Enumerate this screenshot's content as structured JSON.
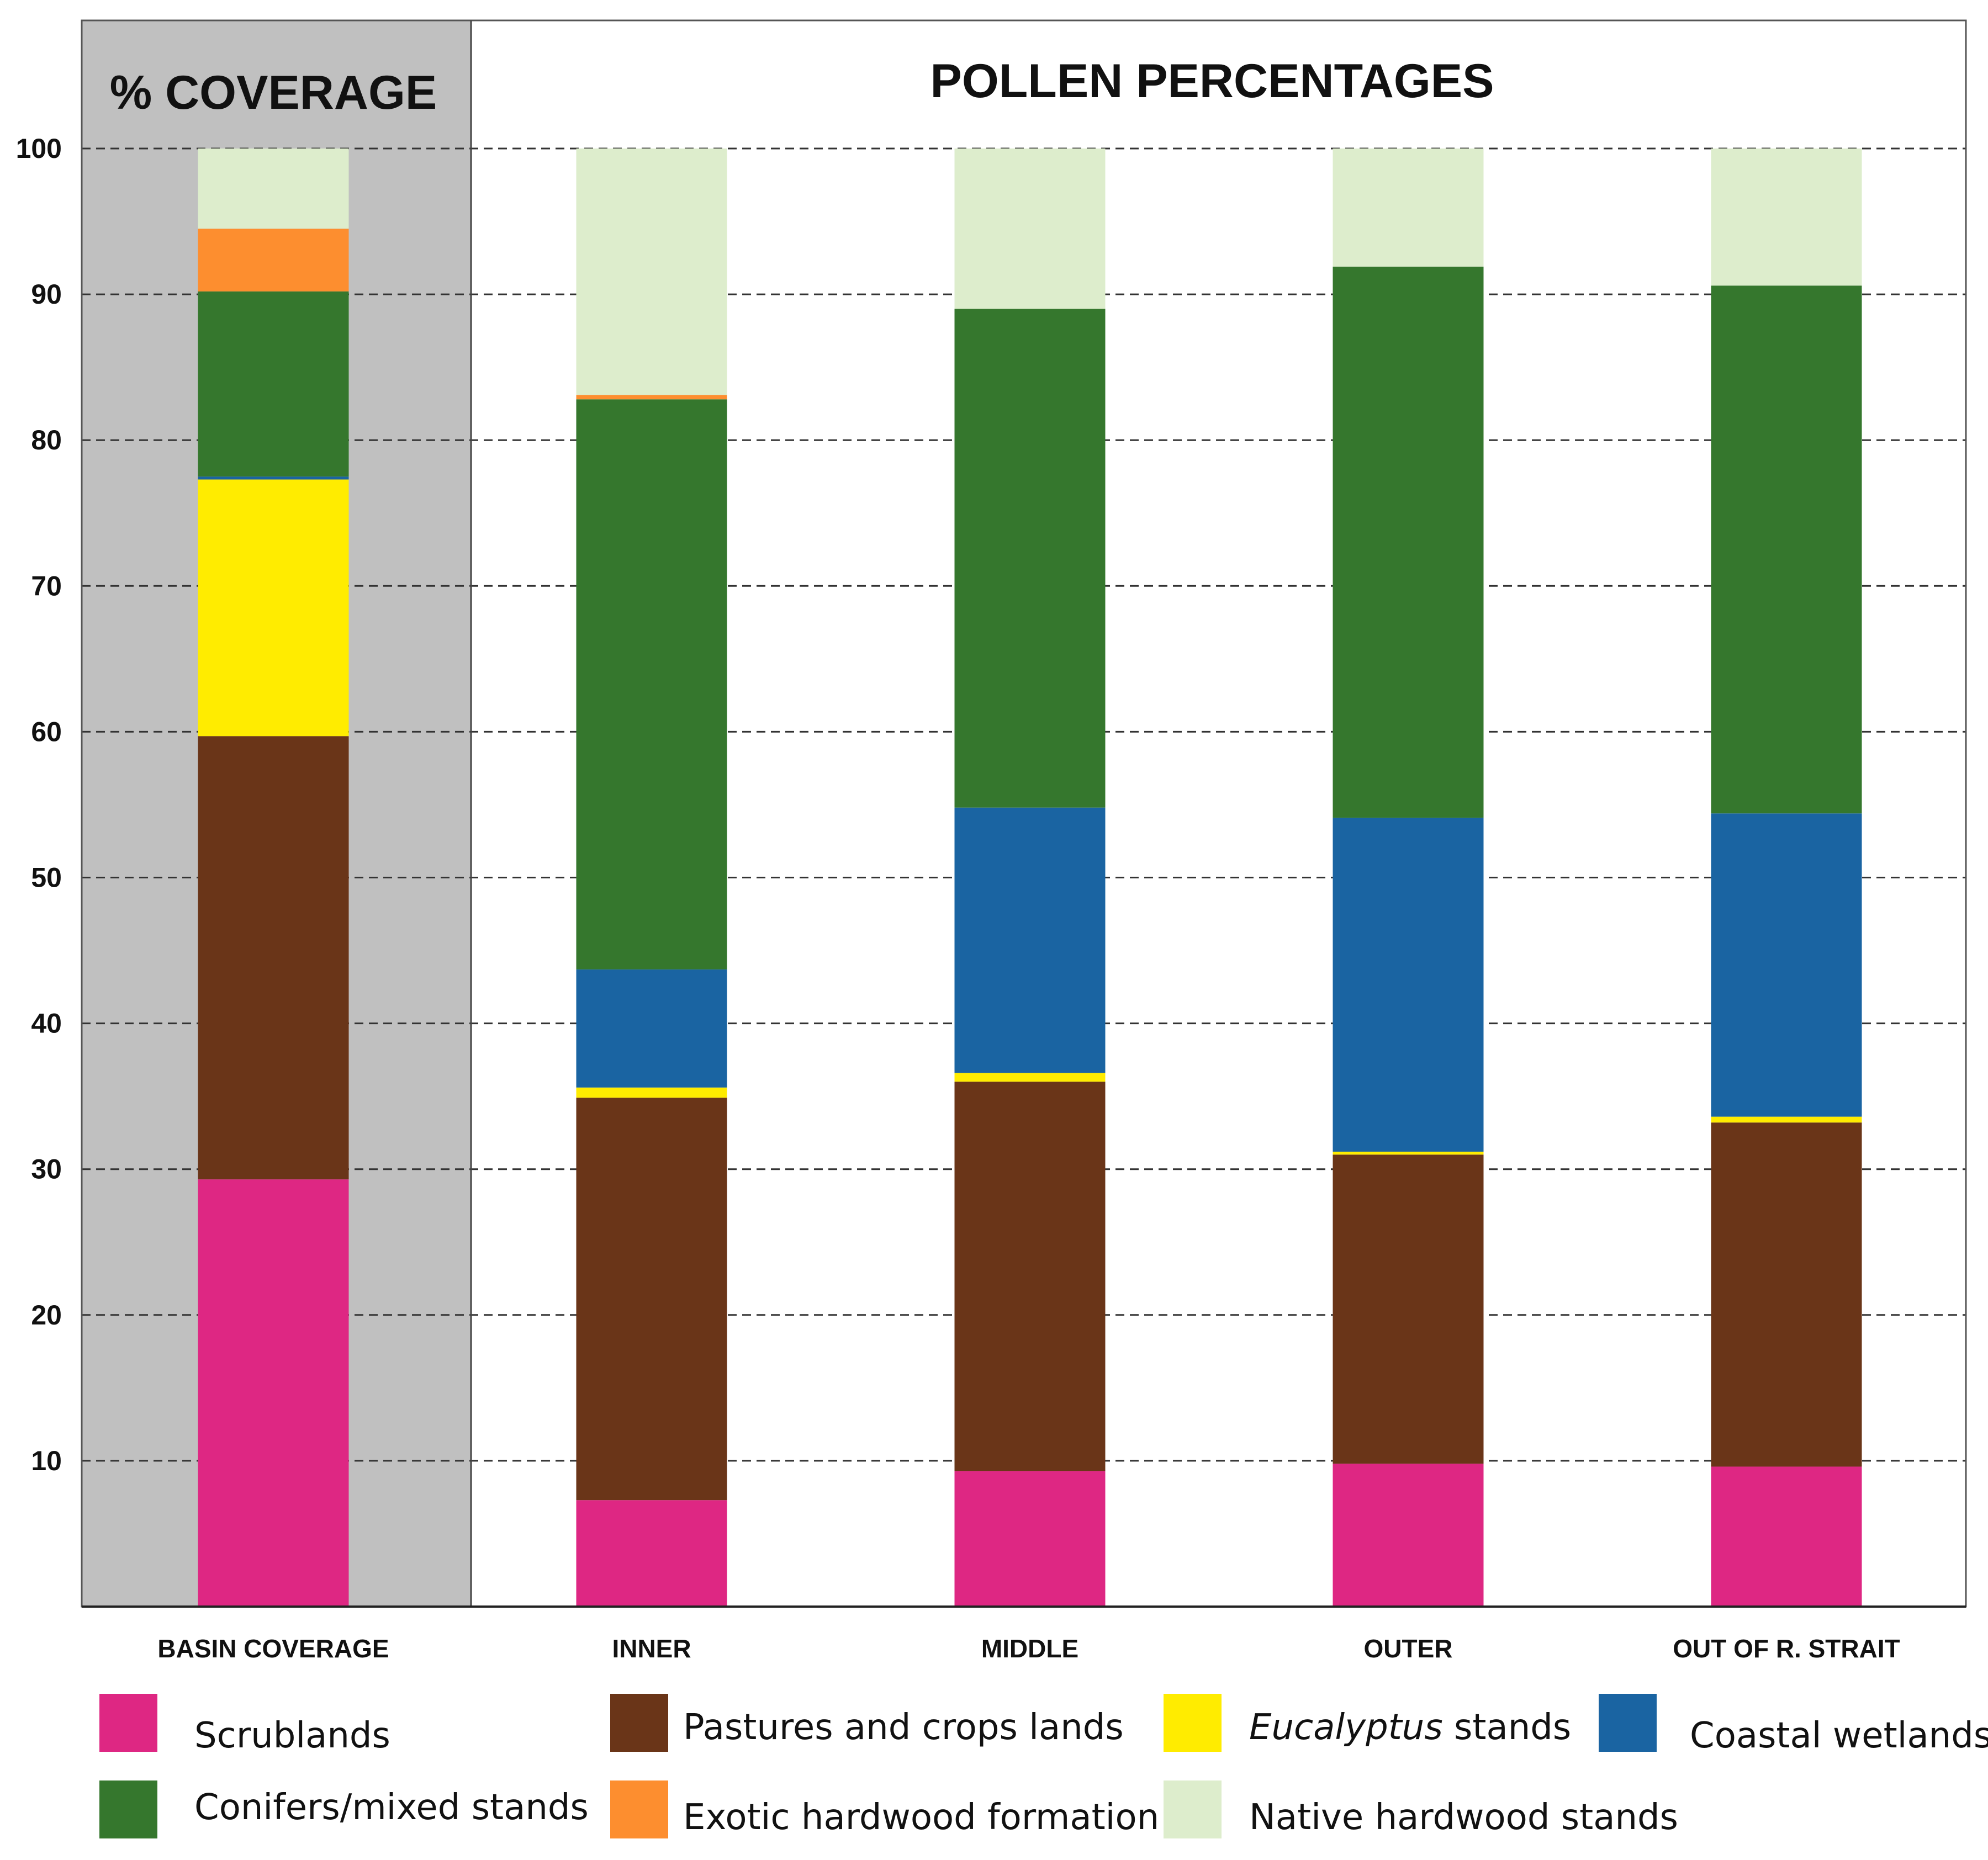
{
  "chart_data": {
    "type": "bar",
    "stacked": true,
    "panel_titles": {
      "coverage": "% COVERAGE",
      "pollen": "POLLEN PERCENTAGES"
    },
    "ylim": [
      0,
      100
    ],
    "yticks": [
      10,
      20,
      30,
      40,
      50,
      60,
      70,
      80,
      90,
      100
    ],
    "grid": true,
    "categories": [
      "BASIN COVERAGE",
      "INNER",
      "MIDDLE",
      "OUTER",
      "OUT OF R. STRAIT"
    ],
    "series": [
      {
        "name": "Scrublands",
        "color": "#DE2783",
        "values": [
          29.3,
          7.3,
          9.3,
          9.8,
          9.6
        ]
      },
      {
        "name": "Pastures and crops lands",
        "color": "#6A3518",
        "values": [
          30.4,
          27.6,
          26.7,
          21.2,
          23.6
        ]
      },
      {
        "name": "Eucalyptus stands",
        "italic_part": "Eucalyptus",
        "rest": " stands",
        "color": "#FFEC00",
        "values": [
          17.6,
          0.7,
          0.6,
          0.2,
          0.4
        ]
      },
      {
        "name": "Coastal wetlands",
        "color": "#1A64A2",
        "values": [
          0.2,
          8.1,
          18.2,
          22.9,
          20.8
        ]
      },
      {
        "name": "Conifers/mixed stands",
        "color": "#35772D",
        "values": [
          12.7,
          39.1,
          34.2,
          37.8,
          36.2
        ]
      },
      {
        "name": "Exotic hardwood formation",
        "color": "#FD8E2F",
        "values": [
          4.3,
          0.3,
          0.0,
          0.0,
          0.0
        ]
      },
      {
        "name": "Native hardwood stands",
        "color": "#DDEDCC",
        "values": [
          5.5,
          16.9,
          11.0,
          8.1,
          9.4
        ]
      }
    ]
  }
}
